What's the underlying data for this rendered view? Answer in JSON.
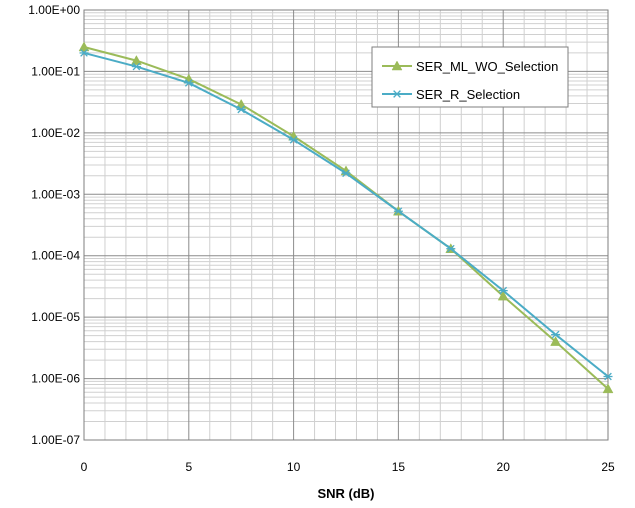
{
  "chart_data": {
    "type": "line",
    "title": "",
    "xlabel": "SNR (dB)",
    "ylabel": "",
    "x": [
      0,
      2.5,
      5,
      7.5,
      10,
      12.5,
      15,
      17.5,
      20,
      22.5,
      25
    ],
    "x_ticks": [
      0,
      5,
      10,
      15,
      20,
      25
    ],
    "x_tick_labels": [
      "0",
      "5",
      "10",
      "15",
      "20",
      "25"
    ],
    "xlim": [
      0,
      25
    ],
    "y_scale": "log",
    "ylim": [
      1e-07,
      1
    ],
    "y_ticks": [
      1,
      0.1,
      0.01,
      0.001,
      0.0001,
      1e-05,
      1e-06,
      1e-07
    ],
    "y_tick_labels": [
      "1.00E+00",
      "1.00E-01",
      "1.00E-02",
      "1.00E-03",
      "1.00E-04",
      "1.00E-05",
      "1.00E-06",
      "1.00E-07"
    ],
    "grid": true,
    "legend_position": "top-right",
    "series": [
      {
        "name": "SER_ML_WO_Selection",
        "color": "#9BBB59",
        "marker": "triangle",
        "values": [
          0.25,
          0.15,
          0.075,
          0.029,
          0.0088,
          0.0024,
          0.00053,
          0.00013,
          2.2e-05,
          4e-06,
          6.8e-07
        ]
      },
      {
        "name": "SER_R_Selection",
        "color": "#4BACC6",
        "marker": "asterisk",
        "values": [
          0.2,
          0.12,
          0.065,
          0.024,
          0.0077,
          0.0022,
          0.00053,
          0.00013,
          2.7e-05,
          5.2e-06,
          1.08e-06
        ]
      }
    ]
  }
}
